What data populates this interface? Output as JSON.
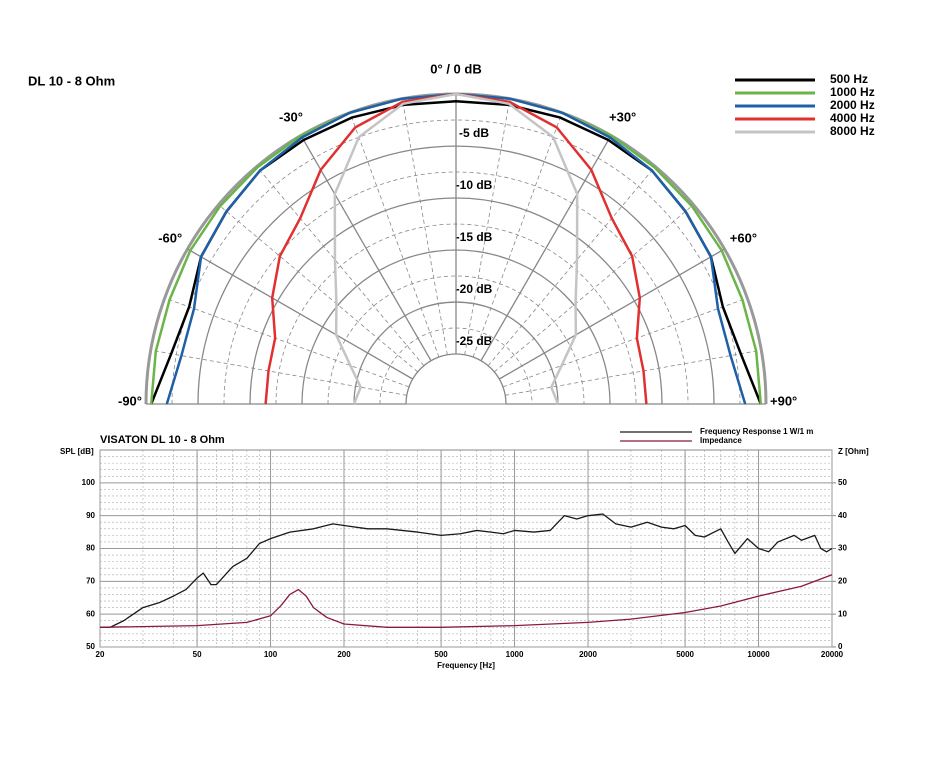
{
  "chart_data": [
    {
      "type": "polar",
      "title": "DL 10 - 8 Ohm",
      "rlim": [
        -25,
        0
      ],
      "rticks": [
        {
          "value": -5,
          "label": "-5 dB"
        },
        {
          "value": -10,
          "label": "-10 dB"
        },
        {
          "value": -15,
          "label": "-15 dB"
        },
        {
          "value": -20,
          "label": "-20 dB"
        },
        {
          "value": -25,
          "label": "-25 dB"
        }
      ],
      "thetalim": [
        -90,
        90
      ],
      "thetaticks": [
        {
          "value": -90,
          "label": "-90°"
        },
        {
          "value": -60,
          "label": "-60°"
        },
        {
          "value": -30,
          "label": "-30°"
        },
        {
          "value": 0,
          "label": "0° / 0 dB"
        },
        {
          "value": 30,
          "label": "+30°"
        },
        {
          "value": 60,
          "label": "+60°"
        },
        {
          "value": 90,
          "label": "+90°"
        }
      ],
      "theta": [
        -90,
        -80,
        -70,
        -60,
        -50,
        -40,
        -30,
        -20,
        -10,
        0,
        10,
        20,
        30,
        40,
        50,
        60,
        70,
        80,
        90
      ],
      "grid": true,
      "legend": "top-right",
      "series": [
        {
          "name": "500 Hz",
          "color": "#000000",
          "values": [
            -0.5,
            -2,
            -2.5,
            -1.5,
            -1,
            -0.5,
            -0.5,
            -0.5,
            -0.6,
            -0.7,
            -0.6,
            -0.5,
            -0.5,
            -0.5,
            -1,
            -1.5,
            -2.5,
            -2,
            -0.5
          ]
        },
        {
          "name": "1000 Hz",
          "color": "#6ab547",
          "values": [
            -0.5,
            -0.5,
            -0.5,
            -0.3,
            -0.2,
            -0.1,
            0,
            0,
            0,
            0,
            0,
            0,
            0,
            -0.1,
            -0.2,
            -0.3,
            -0.5,
            -0.5,
            -0.5
          ]
        },
        {
          "name": "2000 Hz",
          "color": "#1f5fa8",
          "values": [
            -2,
            -3,
            -3,
            -1.5,
            -1,
            -0.5,
            -0.2,
            0,
            0,
            0,
            0,
            0,
            -0.2,
            -0.5,
            -1,
            -1.5,
            -3,
            -3,
            -2
          ]
        },
        {
          "name": "4000 Hz",
          "color": "#e03030",
          "values": [
            -11.5,
            -11.5,
            -11.3,
            -9.4,
            -7.7,
            -6.5,
            -3.8,
            -1.5,
            -0.3,
            0,
            -0.3,
            -1.5,
            -3.8,
            -6.5,
            -7.7,
            -9.4,
            -11.3,
            -11.5,
            -11.5
          ]
        },
        {
          "name": "8000 Hz",
          "color": "#c4c4c4",
          "values": [
            -20,
            -20.5,
            -19,
            -16.5,
            -14.8,
            -11.7,
            -6.5,
            -2.5,
            -0.5,
            0,
            -0.5,
            -2.5,
            -6.5,
            -11.7,
            -14.8,
            -16.5,
            -19,
            -20.5,
            -20
          ]
        }
      ]
    },
    {
      "type": "line",
      "title": "VISATON DL 10 - 8 Ohm",
      "x_label": "Frequency [Hz]",
      "y_label": "SPL [dB]",
      "y2_label": "Z [Ohm]",
      "xscale": "log",
      "xlim": [
        20,
        20000
      ],
      "xticks": [
        20,
        50,
        100,
        200,
        500,
        1000,
        2000,
        5000,
        10000,
        20000
      ],
      "ylim": [
        50,
        110
      ],
      "yticks": [
        50,
        60,
        70,
        80,
        90,
        100
      ],
      "y2lim": [
        0,
        60
      ],
      "y2ticks": [
        0,
        10,
        20,
        30,
        40,
        50
      ],
      "grid": true,
      "legend": "top-right",
      "series": [
        {
          "name": "Frequency Response 1 W/1 m",
          "color": "#1a1a1a",
          "x": [
            20,
            22,
            25,
            30,
            35,
            40,
            45,
            50,
            53,
            57,
            60,
            70,
            80,
            90,
            100,
            120,
            150,
            180,
            200,
            250,
            300,
            400,
            500,
            600,
            700,
            800,
            900,
            1000,
            1200,
            1400,
            1600,
            1800,
            2000,
            2300,
            2600,
            3000,
            3500,
            4000,
            4500,
            5000,
            5500,
            6000,
            7000,
            7500,
            8000,
            9000,
            10000,
            11000,
            12000,
            14000,
            15000,
            17000,
            18000,
            19000,
            20000
          ],
          "values": [
            56,
            56,
            58,
            62,
            63.5,
            65.5,
            67.5,
            71,
            72.5,
            69,
            69,
            74.5,
            77,
            81.5,
            83,
            85,
            86,
            87.5,
            87,
            86,
            86,
            85,
            84,
            84.5,
            85.5,
            85,
            84.5,
            85.5,
            85,
            85.5,
            90,
            89,
            90,
            90.5,
            87.5,
            86.5,
            88,
            86.5,
            86,
            87,
            84,
            83.5,
            86,
            82,
            78.5,
            83,
            80,
            79,
            82,
            84,
            82.5,
            84,
            80,
            79,
            80
          ]
        },
        {
          "name": "Impedance",
          "color": "#8b1a3a",
          "axis": "y2",
          "x": [
            20,
            50,
            80,
            100,
            110,
            120,
            130,
            140,
            150,
            170,
            200,
            300,
            500,
            1000,
            2000,
            3000,
            5000,
            7000,
            10000,
            15000,
            20000
          ],
          "values": [
            6,
            6.5,
            7.5,
            9.5,
            12.5,
            16,
            17.5,
            15.5,
            12,
            9,
            7,
            6,
            6,
            6.5,
            7.5,
            8.5,
            10.5,
            12.5,
            15.5,
            18.5,
            22
          ]
        }
      ]
    }
  ]
}
